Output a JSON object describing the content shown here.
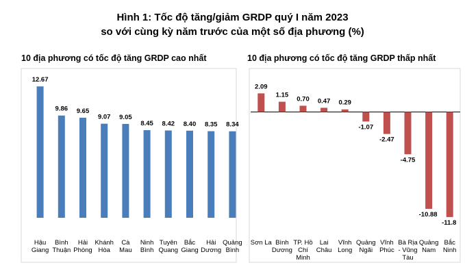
{
  "figure": {
    "title_line1": "Hình 1: Tốc độ tăng/giảm GRDP quý I năm 2023",
    "title_line2": "so với cùng kỳ năm trước của một số địa phương (%)"
  },
  "colors": {
    "left_bar": "#4a7ebb",
    "right_bar": "#c0504d",
    "frame": "#d9d9d9",
    "axis": "#000000"
  },
  "chart_data": [
    {
      "type": "bar",
      "title": "10 địa phương có tốc độ tăng GRDP cao nhất",
      "categories": [
        "Hậu Giang",
        "Bình Thuận",
        "Hải Phòng",
        "Khánh Hòa",
        "Cà Mau",
        "Ninh Bình",
        "Tuyên Quang",
        "Bắc Giang",
        "Hải Dương",
        "Quảng Bình"
      ],
      "category_lines": [
        [
          "Hậu",
          "Giang"
        ],
        [
          "Bình",
          "Thuận"
        ],
        [
          "Hải",
          "Phòng"
        ],
        [
          "Khánh",
          "Hòa"
        ],
        [
          "Cà",
          "Mau"
        ],
        [
          "Ninh",
          "Bình"
        ],
        [
          "Tuyên",
          "Quang"
        ],
        [
          "Bắc",
          "Giang"
        ],
        [
          "Hải",
          "Dương"
        ],
        [
          "Quảng",
          "Bình"
        ]
      ],
      "values": [
        12.67,
        9.86,
        9.65,
        9.07,
        9.05,
        8.45,
        8.42,
        8.4,
        8.35,
        8.34
      ],
      "value_labels": [
        "12.67",
        "9.86",
        "9.65",
        "9.07",
        "9.05",
        "8.45",
        "8.42",
        "8.40",
        "8.35",
        "8.34"
      ],
      "ylim": [
        0,
        14
      ],
      "xlabel": "",
      "ylabel": "",
      "grid": false
    },
    {
      "type": "bar",
      "title": "10 địa phương có tốc độ tăng GRDP thấp nhất",
      "categories": [
        "Sơn La",
        "Bình Dương",
        "TP. Hồ Chí Minh",
        "Lai Châu",
        "Vĩnh Long",
        "Quảng Ngãi",
        "Vĩnh Phúc",
        "Bà Rịa - Vũng Tàu",
        "Quảng Nam",
        "Bắc Ninh"
      ],
      "category_lines": [
        [
          "Sơn La"
        ],
        [
          "Bình",
          "Dương"
        ],
        [
          "TP. Hồ",
          "Chí",
          "Minh"
        ],
        [
          "Lai",
          "Châu"
        ],
        [
          "Vĩnh",
          "Long"
        ],
        [
          "Quảng",
          "Ngãi"
        ],
        [
          "Vĩnh",
          "Phúc"
        ],
        [
          "Bà Rịa",
          "- Vũng",
          "Tàu"
        ],
        [
          "Quảng",
          "Nam"
        ],
        [
          "Bắc",
          "Ninh"
        ]
      ],
      "values": [
        2.09,
        1.15,
        0.7,
        0.47,
        0.29,
        -1.07,
        -2.47,
        -4.75,
        -10.88,
        -11.8
      ],
      "value_labels": [
        "2.09",
        "1.15",
        "0.70",
        "0.47",
        "0.29",
        "-1.07",
        "-2.47",
        "-4.75",
        "-10.88",
        "-11.8"
      ],
      "ylim": [
        -12,
        3
      ],
      "xlabel": "",
      "ylabel": "",
      "grid": false
    }
  ]
}
